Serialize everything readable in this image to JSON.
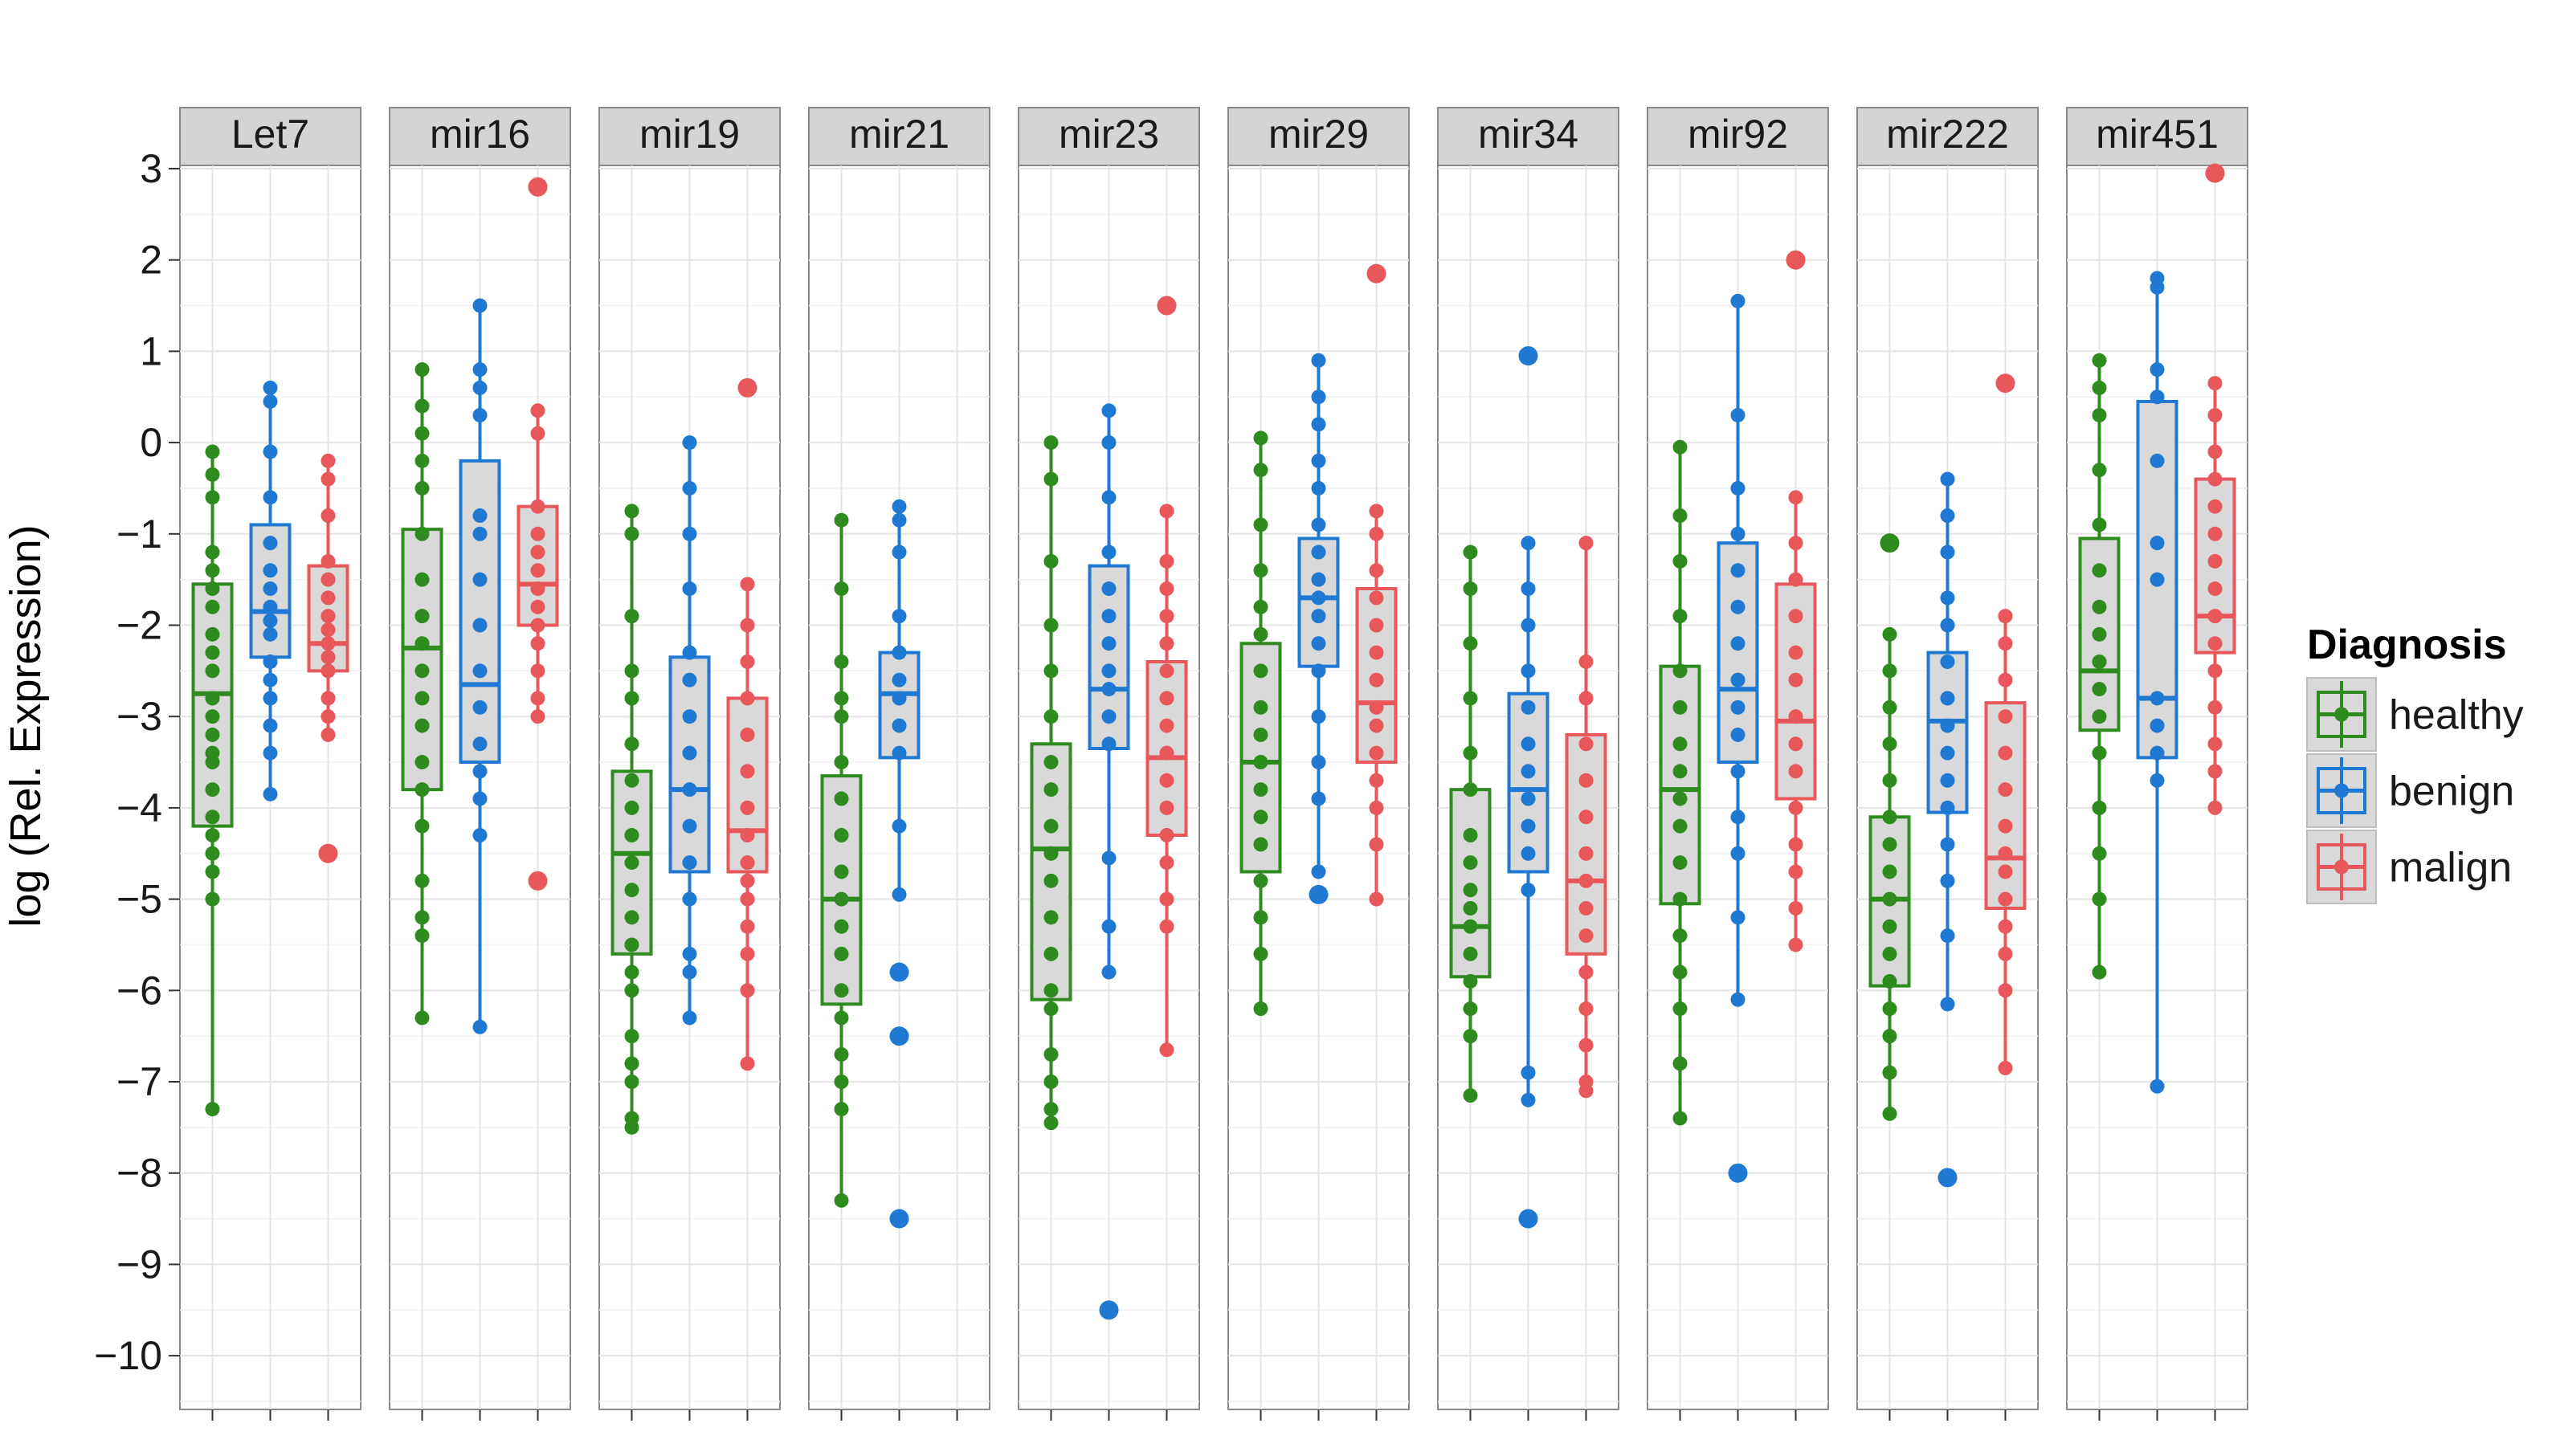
{
  "chart_data": {
    "type": "boxplot",
    "ylabel": "log (Rel. Expression)",
    "xlabel": "",
    "ylim": [
      -10.6,
      3.6
    ],
    "yticks": [
      3,
      2,
      1,
      0,
      -1,
      -2,
      -3,
      -4,
      -5,
      -6,
      -7,
      -8,
      -9,
      -10
    ],
    "ytick_labels": [
      "3",
      "2",
      "1",
      "0",
      "−1",
      "−2",
      "−3",
      "−4",
      "−5",
      "−6",
      "−7",
      "−8",
      "−9",
      "−10"
    ],
    "grid": true,
    "legend": {
      "title": "Diagnosis",
      "position": "right",
      "entries": [
        {
          "name": "healthy",
          "color": "#2e8b1e"
        },
        {
          "name": "benign",
          "color": "#1f78d1"
        },
        {
          "name": "malign",
          "color": "#e8575a"
        }
      ]
    },
    "box_fill": "#d9d9d9",
    "panel_header_fill": "#d4d4d4",
    "groups": [
      "healthy",
      "benign",
      "malign"
    ],
    "panels": [
      {
        "name": "Let7",
        "boxes": [
          {
            "group": "healthy",
            "min": -7.3,
            "q1": -4.2,
            "median": -2.75,
            "q3": -1.55,
            "max": -0.1,
            "points": [
              -0.1,
              -0.35,
              -0.6,
              -1.2,
              -1.4,
              -1.6,
              -1.8,
              -2.1,
              -2.3,
              -2.5,
              -2.8,
              -3.0,
              -3.2,
              -3.4,
              -3.5,
              -3.8,
              -4.1,
              -4.3,
              -4.5,
              -4.7,
              -5.0,
              -7.3
            ],
            "outliers": []
          },
          {
            "group": "benign",
            "min": -3.85,
            "q1": -2.35,
            "median": -1.85,
            "q3": -0.9,
            "max": 0.6,
            "points": [
              0.6,
              0.45,
              -0.1,
              -0.6,
              -1.1,
              -1.4,
              -1.6,
              -1.8,
              -1.95,
              -2.1,
              -2.4,
              -2.6,
              -2.8,
              -3.1,
              -3.4,
              -3.85
            ],
            "outliers": []
          },
          {
            "group": "malign",
            "min": -3.2,
            "q1": -2.5,
            "median": -2.2,
            "q3": -1.35,
            "max": -0.2,
            "points": [
              -0.2,
              -0.4,
              -0.8,
              -1.3,
              -1.5,
              -1.7,
              -1.9,
              -2.05,
              -2.2,
              -2.35,
              -2.5,
              -2.8,
              -3.0,
              -3.2
            ],
            "outliers": [
              -4.5
            ]
          }
        ]
      },
      {
        "name": "mir16",
        "boxes": [
          {
            "group": "healthy",
            "min": -6.3,
            "q1": -3.8,
            "median": -2.25,
            "q3": -0.95,
            "max": 0.8,
            "points": [
              0.8,
              0.4,
              0.1,
              -0.2,
              -0.5,
              -1.0,
              -1.5,
              -1.9,
              -2.2,
              -2.5,
              -2.8,
              -3.1,
              -3.5,
              -3.8,
              -4.2,
              -4.8,
              -5.2,
              -5.4,
              -6.3
            ],
            "outliers": []
          },
          {
            "group": "benign",
            "min": -6.4,
            "q1": -3.5,
            "median": -2.65,
            "q3": -0.2,
            "max": 1.5,
            "points": [
              1.5,
              0.8,
              0.6,
              0.3,
              -0.8,
              -1.0,
              -1.5,
              -2.0,
              -2.5,
              -2.9,
              -3.3,
              -3.6,
              -3.9,
              -4.3,
              -6.4
            ],
            "outliers": []
          },
          {
            "group": "malign",
            "min": -3.0,
            "q1": -2.0,
            "median": -1.55,
            "q3": -0.7,
            "max": 0.35,
            "points": [
              0.35,
              0.1,
              -0.7,
              -1.0,
              -1.2,
              -1.4,
              -1.6,
              -1.8,
              -2.0,
              -2.2,
              -2.5,
              -2.8,
              -3.0
            ],
            "outliers": [
              2.8,
              -4.8
            ]
          }
        ]
      },
      {
        "name": "mir19",
        "boxes": [
          {
            "group": "healthy",
            "min": -7.5,
            "q1": -5.6,
            "median": -4.5,
            "q3": -3.6,
            "max": -0.75,
            "points": [
              -0.75,
              -1.0,
              -1.9,
              -2.5,
              -2.8,
              -3.3,
              -3.7,
              -4.0,
              -4.3,
              -4.6,
              -4.9,
              -5.2,
              -5.5,
              -5.8,
              -6.0,
              -6.5,
              -6.8,
              -7.0,
              -7.4,
              -7.5
            ],
            "outliers": []
          },
          {
            "group": "benign",
            "min": -6.3,
            "q1": -4.7,
            "median": -3.8,
            "q3": -2.35,
            "max": 0.0,
            "points": [
              0.0,
              -0.5,
              -1.0,
              -1.6,
              -2.3,
              -2.6,
              -3.0,
              -3.4,
              -3.8,
              -4.2,
              -4.6,
              -5.0,
              -5.6,
              -5.8,
              -6.3
            ],
            "outliers": []
          },
          {
            "group": "malign",
            "min": -6.8,
            "q1": -4.7,
            "median": -4.25,
            "q3": -2.8,
            "max": -1.55,
            "points": [
              -1.55,
              -2.0,
              -2.4,
              -2.8,
              -3.2,
              -3.6,
              -4.0,
              -4.3,
              -4.6,
              -4.8,
              -5.0,
              -5.3,
              -5.6,
              -6.0,
              -6.8
            ],
            "outliers": [
              0.6
            ]
          }
        ]
      },
      {
        "name": "mir21",
        "boxes": [
          {
            "group": "healthy",
            "min": -8.3,
            "q1": -6.15,
            "median": -5.0,
            "q3": -3.65,
            "max": -0.85,
            "points": [
              -0.85,
              -1.6,
              -2.4,
              -2.8,
              -3.0,
              -3.5,
              -3.9,
              -4.3,
              -4.7,
              -5.0,
              -5.3,
              -5.6,
              -6.0,
              -6.3,
              -6.7,
              -7.0,
              -7.3,
              -8.3
            ],
            "outliers": []
          },
          {
            "group": "benign",
            "min": -4.95,
            "q1": -3.45,
            "median": -2.75,
            "q3": -2.3,
            "max": -0.7,
            "points": [
              -0.7,
              -0.85,
              -1.2,
              -1.9,
              -2.3,
              -2.6,
              -2.8,
              -3.1,
              -3.4,
              -4.2,
              -4.95
            ],
            "outliers": [
              -5.8,
              -6.5,
              -8.5
            ]
          }
        ]
      },
      {
        "name": "mir23",
        "boxes": [
          {
            "group": "healthy",
            "min": -7.45,
            "q1": -6.1,
            "median": -4.45,
            "q3": -3.3,
            "max": 0.0,
            "points": [
              0.0,
              -0.4,
              -1.3,
              -2.0,
              -2.5,
              -3.0,
              -3.5,
              -3.8,
              -4.2,
              -4.5,
              -4.8,
              -5.2,
              -5.6,
              -6.0,
              -6.2,
              -6.7,
              -7.0,
              -7.3,
              -7.45
            ],
            "outliers": []
          },
          {
            "group": "benign",
            "min": -5.8,
            "q1": -3.35,
            "median": -2.7,
            "q3": -1.35,
            "max": 0.35,
            "points": [
              0.35,
              0.0,
              -0.6,
              -1.2,
              -1.6,
              -1.9,
              -2.2,
              -2.5,
              -2.7,
              -3.0,
              -3.3,
              -4.55,
              -5.3,
              -5.8
            ],
            "outliers": [
              -9.5
            ]
          },
          {
            "group": "malign",
            "min": -6.65,
            "q1": -4.3,
            "median": -3.45,
            "q3": -2.4,
            "max": -0.75,
            "points": [
              -0.75,
              -1.3,
              -1.6,
              -1.9,
              -2.2,
              -2.5,
              -2.8,
              -3.1,
              -3.4,
              -3.7,
              -4.0,
              -4.3,
              -4.6,
              -5.0,
              -5.3,
              -6.65
            ],
            "outliers": [
              1.5
            ]
          }
        ]
      },
      {
        "name": "mir29",
        "boxes": [
          {
            "group": "healthy",
            "min": -6.2,
            "q1": -4.7,
            "median": -3.5,
            "q3": -2.2,
            "max": 0.05,
            "points": [
              0.05,
              -0.3,
              -0.9,
              -1.4,
              -1.8,
              -2.1,
              -2.5,
              -2.9,
              -3.2,
              -3.5,
              -3.8,
              -4.1,
              -4.4,
              -4.8,
              -5.2,
              -5.6,
              -6.2
            ],
            "outliers": []
          },
          {
            "group": "benign",
            "min": -4.7,
            "q1": -2.45,
            "median": -1.7,
            "q3": -1.05,
            "max": 0.9,
            "points": [
              0.9,
              0.5,
              0.2,
              -0.2,
              -0.5,
              -0.9,
              -1.2,
              -1.5,
              -1.7,
              -1.9,
              -2.2,
              -2.5,
              -3.0,
              -3.5,
              -3.9,
              -4.7
            ],
            "outliers": [
              -4.95
            ]
          },
          {
            "group": "malign",
            "min": -5.0,
            "q1": -3.5,
            "median": -2.85,
            "q3": -1.6,
            "max": -0.75,
            "points": [
              -0.75,
              -1.0,
              -1.4,
              -1.7,
              -2.0,
              -2.3,
              -2.6,
              -2.9,
              -3.1,
              -3.4,
              -3.7,
              -4.0,
              -4.4,
              -5.0
            ],
            "outliers": [
              1.85
            ]
          }
        ]
      },
      {
        "name": "mir34",
        "boxes": [
          {
            "group": "healthy",
            "min": -7.15,
            "q1": -5.85,
            "median": -5.3,
            "q3": -3.8,
            "max": -1.2,
            "points": [
              -1.2,
              -1.6,
              -2.2,
              -2.8,
              -3.4,
              -3.8,
              -4.3,
              -4.6,
              -4.9,
              -5.1,
              -5.3,
              -5.6,
              -5.9,
              -6.2,
              -6.5,
              -7.15
            ],
            "outliers": []
          },
          {
            "group": "benign",
            "min": -7.2,
            "q1": -4.7,
            "median": -3.8,
            "q3": -2.75,
            "max": -1.1,
            "points": [
              -1.1,
              -1.6,
              -2.0,
              -2.5,
              -2.9,
              -3.3,
              -3.6,
              -3.9,
              -4.2,
              -4.5,
              -4.9,
              -6.9,
              -7.2
            ],
            "outliers": [
              0.95,
              -8.5
            ]
          },
          {
            "group": "malign",
            "min": -7.1,
            "q1": -5.6,
            "median": -4.8,
            "q3": -3.2,
            "max": -1.1,
            "points": [
              -1.1,
              -2.4,
              -2.8,
              -3.3,
              -3.7,
              -4.1,
              -4.5,
              -4.8,
              -5.1,
              -5.4,
              -5.8,
              -6.2,
              -6.6,
              -7.0,
              -7.1
            ],
            "outliers": []
          }
        ]
      },
      {
        "name": "mir92",
        "boxes": [
          {
            "group": "healthy",
            "min": -7.4,
            "q1": -5.05,
            "median": -3.8,
            "q3": -2.45,
            "max": -0.05,
            "points": [
              -0.05,
              -0.8,
              -1.3,
              -1.9,
              -2.5,
              -2.9,
              -3.3,
              -3.6,
              -3.9,
              -4.2,
              -4.6,
              -5.0,
              -5.4,
              -5.8,
              -6.2,
              -6.8,
              -7.4
            ],
            "outliers": []
          },
          {
            "group": "benign",
            "min": -6.1,
            "q1": -3.5,
            "median": -2.7,
            "q3": -1.1,
            "max": 1.55,
            "points": [
              1.55,
              0.3,
              -0.5,
              -1.0,
              -1.4,
              -1.8,
              -2.2,
              -2.6,
              -2.9,
              -3.2,
              -3.6,
              -4.1,
              -4.5,
              -5.2,
              -6.1
            ],
            "outliers": [
              -8.0
            ]
          },
          {
            "group": "malign",
            "min": -5.5,
            "q1": -3.9,
            "median": -3.05,
            "q3": -1.55,
            "max": -0.6,
            "points": [
              -0.6,
              -1.1,
              -1.5,
              -1.9,
              -2.3,
              -2.6,
              -3.0,
              -3.3,
              -3.6,
              -4.0,
              -4.4,
              -4.7,
              -5.1,
              -5.5
            ],
            "outliers": [
              2.0
            ]
          }
        ]
      },
      {
        "name": "mir222",
        "boxes": [
          {
            "group": "healthy",
            "min": -7.35,
            "q1": -5.95,
            "median": -5.0,
            "q3": -4.1,
            "max": -2.1,
            "points": [
              -2.1,
              -2.5,
              -2.9,
              -3.3,
              -3.7,
              -4.1,
              -4.4,
              -4.7,
              -5.0,
              -5.3,
              -5.6,
              -5.9,
              -6.2,
              -6.5,
              -6.9,
              -7.35
            ],
            "outliers": [
              -1.1
            ]
          },
          {
            "group": "benign",
            "min": -6.15,
            "q1": -4.05,
            "median": -3.05,
            "q3": -2.3,
            "max": -0.4,
            "points": [
              -0.4,
              -0.8,
              -1.2,
              -1.7,
              -2.0,
              -2.4,
              -2.8,
              -3.1,
              -3.4,
              -3.7,
              -4.0,
              -4.4,
              -4.8,
              -5.4,
              -6.15
            ],
            "outliers": [
              -8.05
            ]
          },
          {
            "group": "malign",
            "min": -6.85,
            "q1": -5.1,
            "median": -4.55,
            "q3": -2.85,
            "max": -1.9,
            "points": [
              -1.9,
              -2.2,
              -2.6,
              -3.0,
              -3.4,
              -3.8,
              -4.2,
              -4.5,
              -4.7,
              -5.0,
              -5.3,
              -5.6,
              -6.0,
              -6.85
            ],
            "outliers": [
              0.65
            ]
          }
        ]
      },
      {
        "name": "mir451",
        "boxes": [
          {
            "group": "healthy",
            "min": -5.8,
            "q1": -3.15,
            "median": -2.5,
            "q3": -1.05,
            "max": 0.9,
            "points": [
              0.9,
              0.6,
              0.3,
              -0.3,
              -0.9,
              -1.4,
              -1.8,
              -2.1,
              -2.4,
              -2.7,
              -3.0,
              -3.4,
              -4.0,
              -4.5,
              -5.0,
              -5.8
            ],
            "outliers": []
          },
          {
            "group": "benign",
            "min": -7.05,
            "q1": -3.45,
            "median": -2.8,
            "q3": 0.45,
            "max": 1.8,
            "points": [
              1.8,
              1.7,
              0.8,
              0.5,
              -0.2,
              -1.1,
              -1.5,
              -2.8,
              -3.1,
              -3.4,
              -3.7,
              -7.05
            ],
            "outliers": []
          },
          {
            "group": "malign",
            "min": -4.0,
            "q1": -2.3,
            "median": -1.9,
            "q3": -0.4,
            "max": 0.65,
            "points": [
              0.65,
              0.3,
              -0.1,
              -0.4,
              -0.7,
              -1.0,
              -1.3,
              -1.6,
              -1.9,
              -2.2,
              -2.5,
              -2.9,
              -3.3,
              -3.6,
              -4.0
            ],
            "outliers": [
              2.95
            ]
          }
        ]
      }
    ]
  }
}
